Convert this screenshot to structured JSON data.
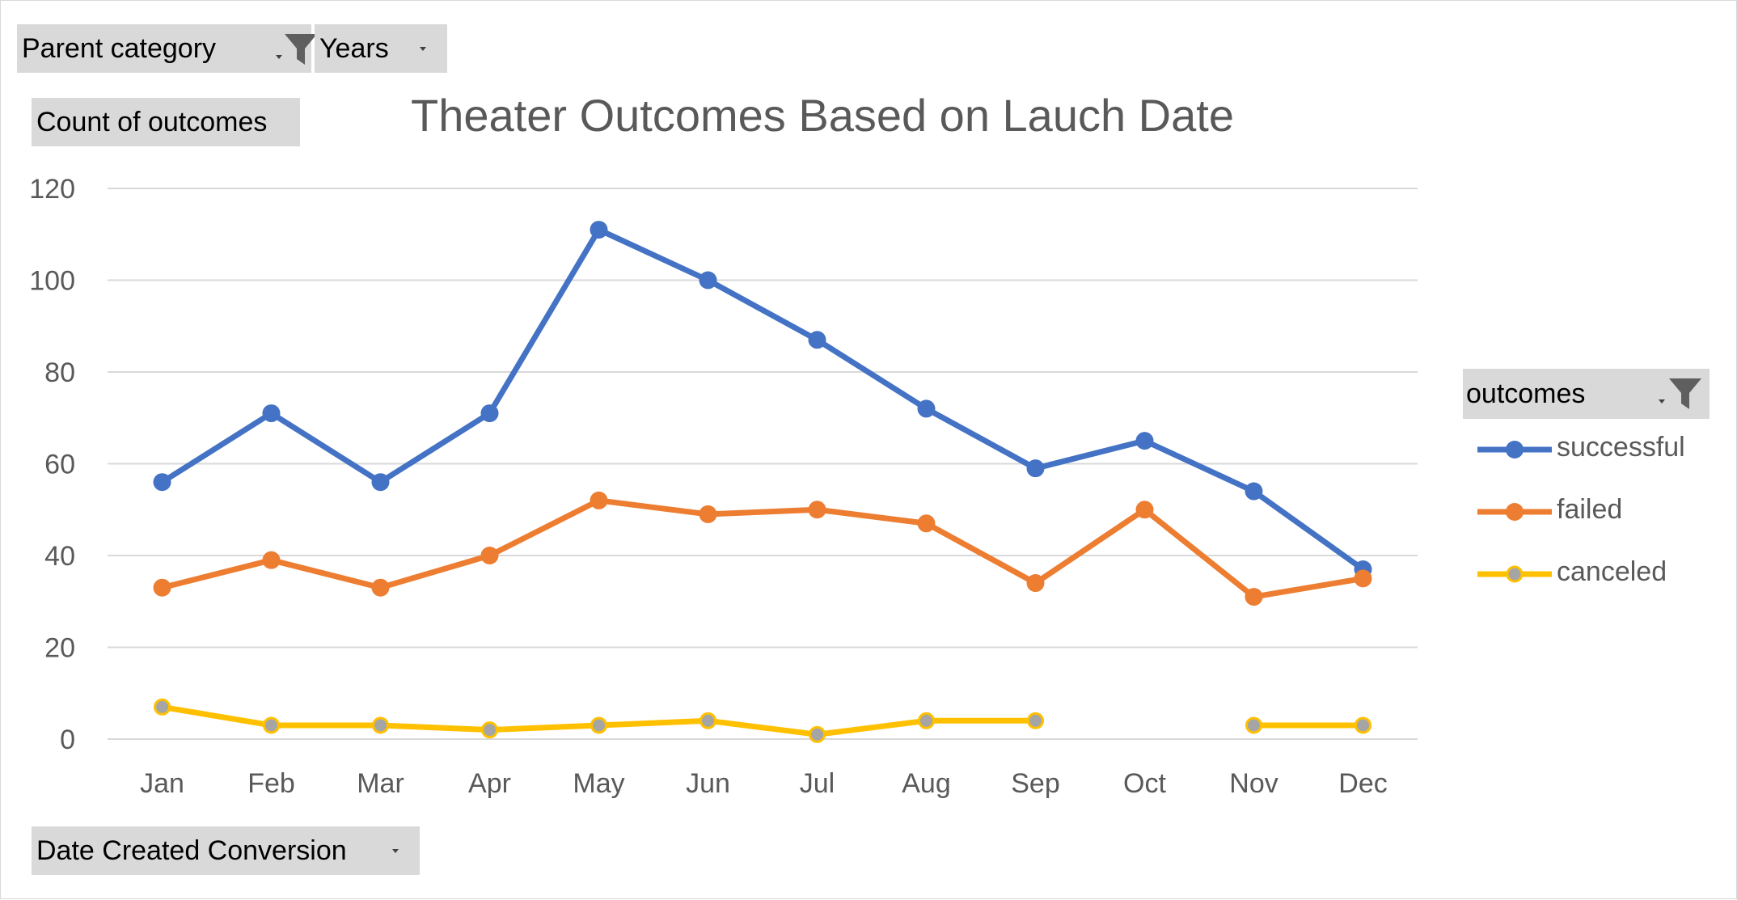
{
  "pivot": {
    "filters": [
      {
        "label": "Parent category",
        "filtered": true
      },
      {
        "label": "Years",
        "filtered": false
      }
    ],
    "values_field": "Count of outcomes",
    "axis_field": "Date Created Conversion",
    "legend_field": "outcomes"
  },
  "colors": {
    "successful": "#4472c4",
    "failed": "#ed7d31",
    "canceled": "#ffc000",
    "canceled_marker": "#a5a5a5",
    "grid": "#d9d9d9",
    "axis_text": "#595959"
  },
  "chart_data": {
    "type": "line",
    "title": "Theater Outcomes Based on Lauch Date",
    "categories": [
      "Jan",
      "Feb",
      "Mar",
      "Apr",
      "May",
      "Jun",
      "Jul",
      "Aug",
      "Sep",
      "Oct",
      "Nov",
      "Dec"
    ],
    "ylim": [
      0,
      120
    ],
    "yticks": [
      0,
      20,
      40,
      60,
      80,
      100,
      120
    ],
    "grid": true,
    "legend": "right",
    "series": [
      {
        "name": "successful",
        "values": [
          56,
          71,
          56,
          71,
          111,
          100,
          87,
          72,
          59,
          65,
          54,
          37
        ]
      },
      {
        "name": "failed",
        "values": [
          33,
          39,
          33,
          40,
          52,
          49,
          50,
          47,
          34,
          50,
          31,
          35
        ]
      },
      {
        "name": "canceled",
        "values": [
          7,
          3,
          3,
          2,
          3,
          4,
          1,
          4,
          4,
          null,
          3,
          3
        ]
      }
    ]
  }
}
